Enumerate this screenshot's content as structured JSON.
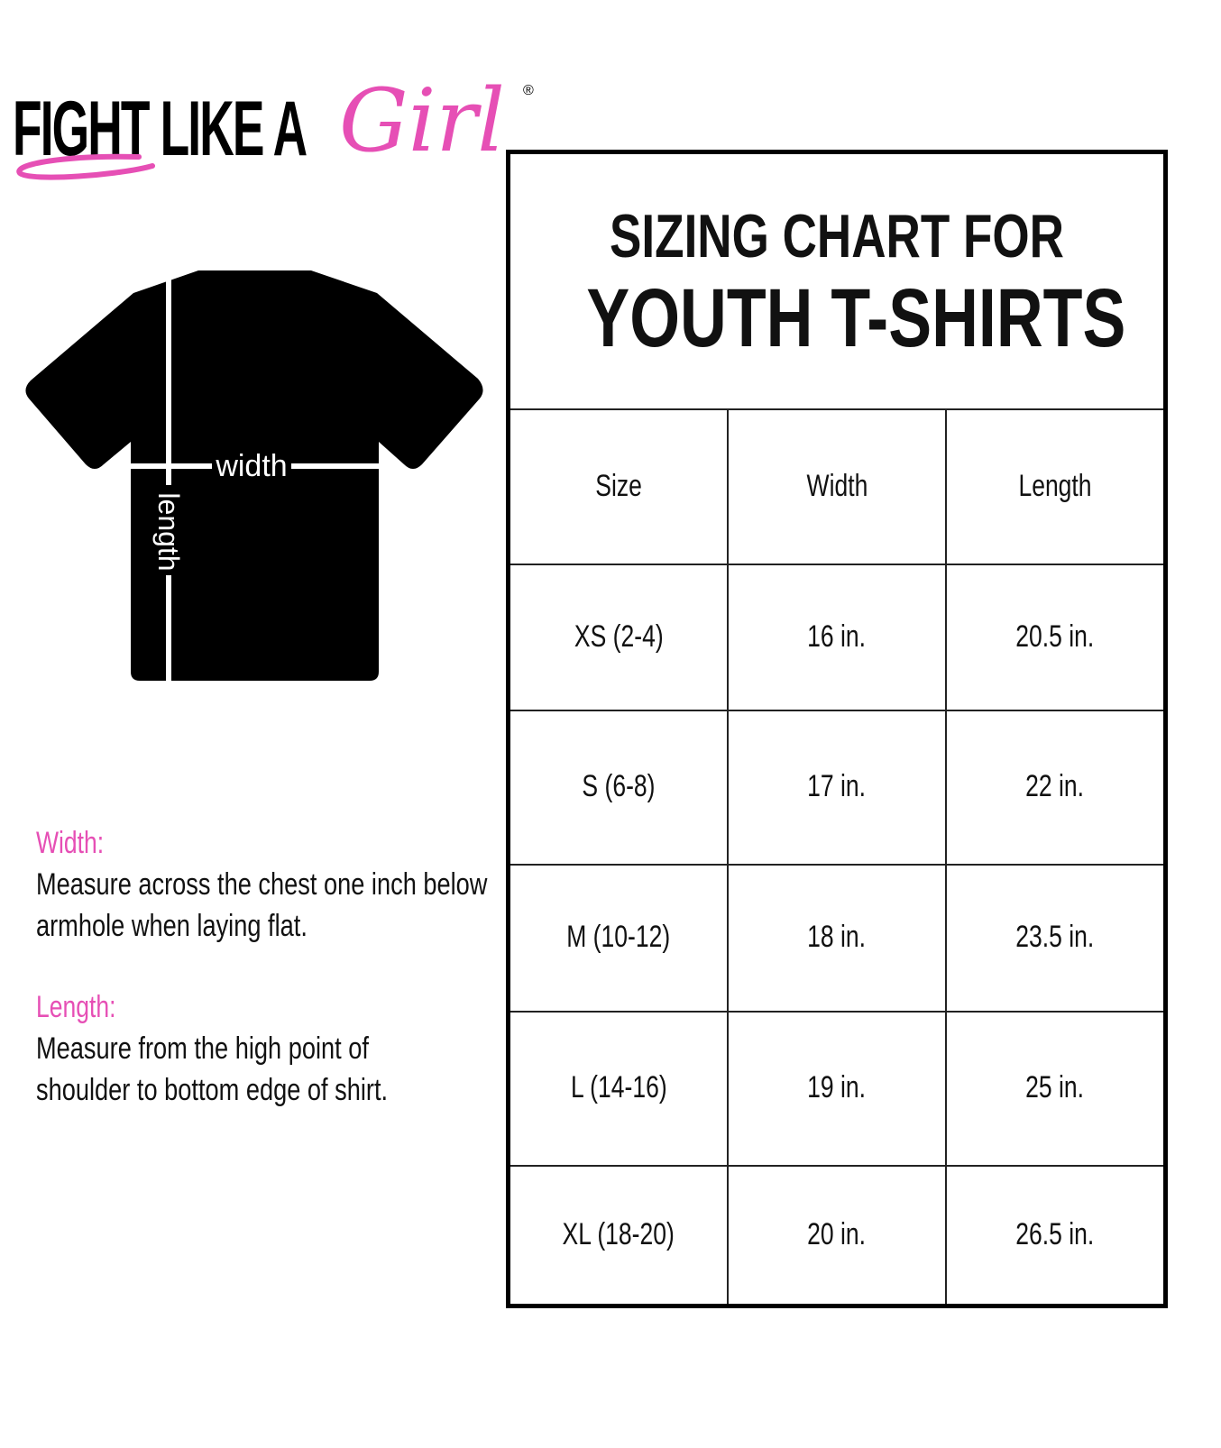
{
  "brand": {
    "text": "FIGHT LIKE A",
    "script": "Girl",
    "registered": "®",
    "accent": "#e64fb5"
  },
  "diagram": {
    "width_label": "width",
    "length_label": "length"
  },
  "instructions": [
    {
      "label": "Width:",
      "text": "Measure across the chest one inch below armhole when laying flat."
    },
    {
      "label": "Length:",
      "text": "Measure from the high point of shoulder to bottom edge of shirt."
    }
  ],
  "table": {
    "title_line1": "SIZING CHART FOR",
    "title_line2": "YOUTH T-SHIRTS",
    "headers": [
      "Size",
      "Width",
      "Length"
    ],
    "rows": [
      [
        "XS (2-4)",
        "16 in.",
        "20.5 in."
      ],
      [
        "S (6-8)",
        "17 in.",
        "22 in."
      ],
      [
        "M (10-12)",
        "18 in.",
        "23.5 in."
      ],
      [
        "L (14-16)",
        "19 in.",
        "25 in."
      ],
      [
        "XL (18-20)",
        "20 in.",
        "26.5 in."
      ]
    ]
  }
}
